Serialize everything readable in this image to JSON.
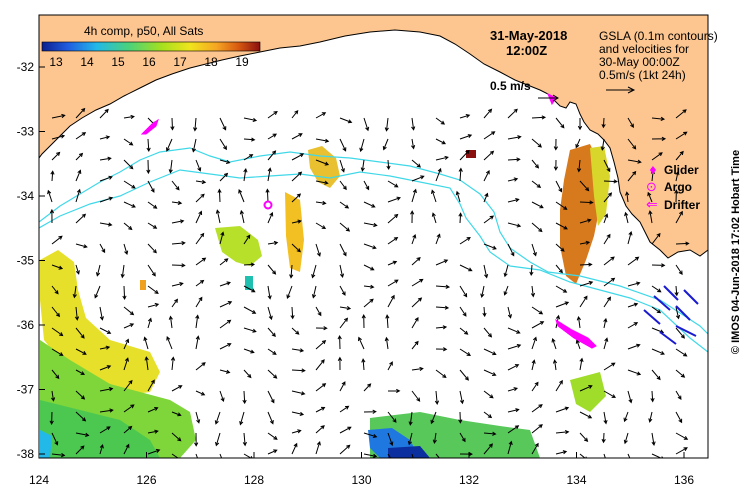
{
  "map": {
    "legend_title": "4h comp, p50, All Sats",
    "legend_ticks": [
      "13",
      "14",
      "15",
      "16",
      "17",
      "18",
      "19"
    ],
    "date": "31-May-2018",
    "time": "12:00Z",
    "gsla_lines": [
      "GSLA (0.1m contours)",
      "and velocities for",
      "30-May 00:00Z",
      "0.5m/s (1kt 24h)"
    ],
    "vel_scale_label": "0.5 m/s",
    "y_ticks": [
      "-32",
      "-33",
      "-34",
      "-35",
      "-36",
      "-37",
      "-38"
    ],
    "x_ticks": [
      "124",
      "126",
      "128",
      "130",
      "132",
      "134",
      "136"
    ],
    "platforms": [
      {
        "symbol": "♦",
        "label": "Glider"
      },
      {
        "symbol": "⊙",
        "label": "Argo"
      },
      {
        "symbol": "⇐",
        "label": "Drifter"
      }
    ],
    "credit": "© IMOS 04-Jun-2018 17:02 Hobart Time"
  },
  "colors": {
    "land": "#fdc690",
    "contour": "#40d8e8",
    "platform": "#ff00ff",
    "scale_stops": [
      "#0c1f8f",
      "#1f5ee0",
      "#22b8e8",
      "#4cd27a",
      "#a6e01e",
      "#f0e41c",
      "#f5a623",
      "#d85a10",
      "#8a0f0f"
    ]
  }
}
